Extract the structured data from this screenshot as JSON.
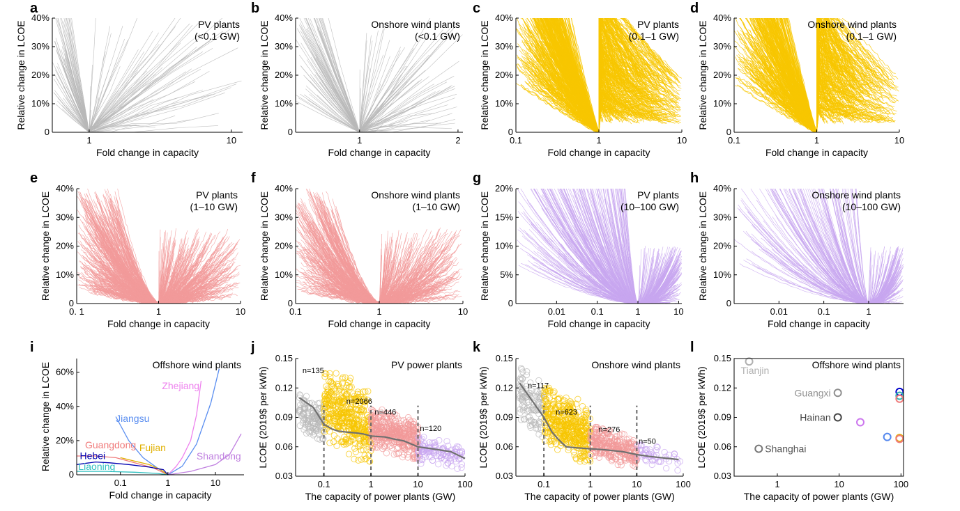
{
  "colors": {
    "gray": "#b8b8b8",
    "yellow": "#f7c600",
    "pink": "#f29a9a",
    "purple": "#c8a6f0",
    "trend": "#707070",
    "dash": "#666666"
  },
  "chart_data": [
    {
      "id": "a",
      "type": "line",
      "panel": "a",
      "title": [
        "PV plants",
        "(<0.1 GW)"
      ],
      "xlabel": "Fold change in capacity",
      "ylabel": "Relative change in LCOE",
      "xscale": "log",
      "xlim": [
        0.55,
        12
      ],
      "ylim": [
        0,
        0.4
      ],
      "xticks": [
        1,
        10
      ],
      "xtick_labels": [
        "1",
        "10"
      ],
      "yticks": [
        0,
        0.1,
        0.2,
        0.3,
        0.4
      ],
      "ytick_labels": [
        "0",
        "10%",
        "20%",
        "30%",
        "40%"
      ],
      "color": "gray",
      "pattern": "sparse",
      "series_count": 70
    },
    {
      "id": "b",
      "type": "line",
      "panel": "b",
      "title": [
        "Onshore wind plants",
        "(<0.1 GW)"
      ],
      "xlabel": "Fold change in capacity",
      "ylabel": "Relative change in LCOE",
      "xscale": "linear",
      "xlim": [
        0.35,
        2.05
      ],
      "ylim": [
        0,
        0.4
      ],
      "xticks": [
        1,
        2
      ],
      "xtick_labels": [
        "1",
        "2"
      ],
      "yticks": [
        0,
        0.1,
        0.2,
        0.3,
        0.4
      ],
      "ytick_labels": [
        "0",
        "10%",
        "20%",
        "30%",
        "40%"
      ],
      "color": "gray",
      "pattern": "sparse",
      "series_count": 70
    },
    {
      "id": "c",
      "type": "line",
      "panel": "c",
      "title": [
        "PV plants",
        "(0.1–1 GW)"
      ],
      "xlabel": "Fold change in capacity",
      "ylabel": "Relative change in LCOE",
      "xscale": "log",
      "xlim": [
        0.1,
        10
      ],
      "ylim": [
        0,
        0.4
      ],
      "xticks": [
        0.1,
        1,
        10
      ],
      "xtick_labels": [
        "0.1",
        "1",
        "10"
      ],
      "yticks": [
        0,
        0.1,
        0.2,
        0.3,
        0.4
      ],
      "ytick_labels": [
        "0",
        "10%",
        "20%",
        "30%",
        "40%"
      ],
      "color": "yellow",
      "pattern": "dense",
      "series_count": 380
    },
    {
      "id": "d",
      "type": "line",
      "panel": "d",
      "title": [
        "Onshore wind plants",
        "(0.1–1 GW)"
      ],
      "xlabel": "Fold change in capacity",
      "ylabel": "Relative change in LCOE",
      "xscale": "log",
      "xlim": [
        0.1,
        10
      ],
      "ylim": [
        0,
        0.4
      ],
      "xticks": [
        0.1,
        1,
        10
      ],
      "xtick_labels": [
        "0.1",
        "1",
        "10"
      ],
      "yticks": [
        0,
        0.1,
        0.2,
        0.3,
        0.4
      ],
      "ytick_labels": [
        "0",
        "10%",
        "20%",
        "30%",
        "40%"
      ],
      "color": "yellow",
      "pattern": "dense",
      "series_count": 300
    },
    {
      "id": "e",
      "type": "line",
      "panel": "e",
      "title": [
        "PV plants",
        "(1–10 GW)"
      ],
      "xlabel": "Fold change in capacity",
      "ylabel": "Relative change in LCOE",
      "xscale": "log",
      "xlim": [
        0.1,
        10
      ],
      "ylim": [
        0,
        0.4
      ],
      "xticks": [
        0.1,
        1,
        10
      ],
      "xtick_labels": [
        "0. 1",
        "1",
        "10"
      ],
      "yticks": [
        0,
        0.1,
        0.2,
        0.3,
        0.4
      ],
      "ytick_labels": [
        "0",
        "10%",
        "20%",
        "30%",
        "40%"
      ],
      "color": "pink",
      "pattern": "fan",
      "series_count": 320
    },
    {
      "id": "f",
      "type": "line",
      "panel": "f",
      "title": [
        "Onshore wind plants",
        "(1–10 GW)"
      ],
      "xlabel": "Fold change in capacity",
      "ylabel": "Relative change in LCOE",
      "xscale": "log",
      "xlim": [
        0.1,
        10
      ],
      "ylim": [
        0,
        0.4
      ],
      "xticks": [
        0.1,
        1,
        10
      ],
      "xtick_labels": [
        "0.1",
        "1",
        "10"
      ],
      "yticks": [
        0,
        0.1,
        0.2,
        0.3,
        0.4
      ],
      "ytick_labels": [
        "0",
        "10%",
        "20%",
        "30%",
        "40%"
      ],
      "color": "pink",
      "pattern": "fan",
      "series_count": 280
    },
    {
      "id": "g",
      "type": "line",
      "panel": "g",
      "title": [
        "PV plants",
        "(10–100 GW)"
      ],
      "xlabel": "Fold change in capacity",
      "ylabel": "Relative change in LCOE",
      "xscale": "log",
      "xlim": [
        0.001,
        12
      ],
      "ylim": [
        0,
        0.2
      ],
      "xticks": [
        0.01,
        0.1,
        1,
        10
      ],
      "xtick_labels": [
        "0.01",
        "0.1",
        "1",
        "10"
      ],
      "yticks": [
        0,
        0.05,
        0.1,
        0.15,
        0.2
      ],
      "ytick_labels": [
        "0",
        "5%",
        "10%",
        "15%",
        "20%"
      ],
      "color": "purple",
      "pattern": "right",
      "series_count": 260
    },
    {
      "id": "h",
      "type": "line",
      "panel": "h",
      "title": [
        "Onshore wind plants",
        "(10–100 GW)"
      ],
      "xlabel": "Fold change in capacity",
      "ylabel": "Relative change in LCOE",
      "xscale": "log",
      "xlim": [
        0.001,
        6
      ],
      "ylim": [
        0,
        0.4
      ],
      "xticks": [
        0.01,
        0.1,
        1
      ],
      "xtick_labels": [
        "0.01",
        "0.1",
        "1"
      ],
      "yticks": [
        0,
        0.1,
        0.2,
        0.3,
        0.4
      ],
      "ytick_labels": [
        "0",
        "10%",
        "20%",
        "30%",
        "40%"
      ],
      "color": "purple",
      "pattern": "right",
      "series_count": 160
    },
    {
      "id": "i",
      "type": "line",
      "panel": "i",
      "title": [
        "Offshore wind plants"
      ],
      "xlabel": "Fold change in capacity",
      "ylabel": "Relative change in LCOE",
      "xscale": "log",
      "xlim": [
        0.012,
        40
      ],
      "ylim": [
        0,
        0.68
      ],
      "xticks": [
        0.1,
        1,
        10
      ],
      "xtick_labels": [
        "0.1",
        "1",
        "10"
      ],
      "yticks": [
        0,
        0.2,
        0.4,
        0.6
      ],
      "ytick_labels": [
        "0",
        "20%",
        "40%",
        "60%"
      ],
      "series": [
        {
          "name": "Zhejiang",
          "color": "#ee82ee",
          "x": [
            1,
            1.5,
            2,
            3,
            4,
            5
          ],
          "y": [
            0,
            0.05,
            0.1,
            0.2,
            0.35,
            0.55
          ],
          "label_x": 0.75,
          "label_y": 0.5
        },
        {
          "name": "Jiangsu",
          "color": "#5a8ef0",
          "x": [
            0.08,
            0.15,
            0.3,
            0.6,
            1,
            2,
            4,
            8,
            12
          ],
          "y": [
            0.34,
            0.2,
            0.1,
            0.04,
            0,
            0.05,
            0.18,
            0.42,
            0.62
          ],
          "label_x": 0.08,
          "label_y": 0.31
        },
        {
          "name": "Guangdong",
          "color": "#f07a7a",
          "x": [
            0.012,
            0.03,
            0.08,
            0.2,
            0.5,
            1
          ],
          "y": [
            0.11,
            0.11,
            0.1,
            0.07,
            0.04,
            0
          ],
          "label_x": 0.018,
          "label_y": 0.155
        },
        {
          "name": "Fujian",
          "color": "#e0b000",
          "x": [
            0.1,
            0.2,
            0.4,
            0.7,
            1
          ],
          "y": [
            0.1,
            0.08,
            0.06,
            0.03,
            0
          ],
          "label_x": 0.25,
          "label_y": 0.138
        },
        {
          "name": "Shandong",
          "color": "#c080e0",
          "x": [
            1,
            3,
            10,
            20,
            35
          ],
          "y": [
            0,
            0.02,
            0.06,
            0.12,
            0.24
          ],
          "label_x": 4,
          "label_y": 0.09
        },
        {
          "name": "Hebei",
          "color": "#0000b0",
          "x": [
            0.012,
            0.03,
            0.06,
            0.15,
            0.4,
            0.8,
            1
          ],
          "y": [
            0.06,
            0.075,
            0.07,
            0.06,
            0.045,
            0.03,
            0
          ],
          "label_x": 0.014,
          "label_y": 0.092
        },
        {
          "name": "Liaoning",
          "color": "#30c0c0",
          "x": [
            0.012,
            0.05,
            0.2,
            0.6,
            1
          ],
          "y": [
            0.02,
            0.02,
            0.015,
            0.008,
            0
          ],
          "label_x": 0.013,
          "label_y": 0.028
        }
      ]
    },
    {
      "id": "j",
      "type": "scatter",
      "panel": "j",
      "title": [
        "PV power plants"
      ],
      "xlabel": "The capacity of power plants (GW)",
      "ylabel": "LCOE (2019$ per kWh)",
      "xscale": "log",
      "xlim": [
        0.025,
        100
      ],
      "ylim": [
        0.03,
        0.15
      ],
      "xticks": [
        0.1,
        1,
        10,
        100
      ],
      "xtick_labels": [
        "0.1",
        "1",
        "10",
        "100"
      ],
      "yticks": [
        0.03,
        0.06,
        0.09,
        0.12,
        0.15
      ],
      "ytick_labels": [
        "0.03",
        "0.06",
        "0.09",
        "0.12",
        "0.15"
      ],
      "groups": [
        {
          "n_label": "n=135",
          "n": 135,
          "color": "gray",
          "xrange": [
            0.03,
            0.1
          ],
          "yrange": [
            0.065,
            0.115
          ],
          "label_x": 0.035,
          "label_y": 0.135
        },
        {
          "n_label": "n=2066",
          "n": 2066,
          "color": "yellow",
          "xrange": [
            0.1,
            1
          ],
          "yrange": [
            0.045,
            0.14
          ],
          "label_x": 0.3,
          "label_y": 0.104
        },
        {
          "n_label": "n=446",
          "n": 446,
          "color": "pink",
          "xrange": [
            1,
            10
          ],
          "yrange": [
            0.048,
            0.098
          ],
          "label_x": 1.2,
          "label_y": 0.093
        },
        {
          "n_label": "n=120",
          "n": 120,
          "color": "purple",
          "xrange": [
            10,
            100
          ],
          "yrange": [
            0.035,
            0.07
          ],
          "label_x": 11,
          "label_y": 0.076
        }
      ],
      "dividers": [
        0.1,
        1,
        10
      ],
      "trend": {
        "x": [
          0.03,
          0.06,
          0.1,
          0.15,
          0.2,
          0.3,
          0.5,
          0.7,
          1,
          2,
          3,
          5,
          10,
          20,
          50,
          100
        ],
        "y": [
          0.11,
          0.1,
          0.083,
          0.078,
          0.076,
          0.075,
          0.074,
          0.073,
          0.071,
          0.07,
          0.068,
          0.066,
          0.06,
          0.058,
          0.055,
          0.048
        ]
      }
    },
    {
      "id": "k",
      "type": "scatter",
      "panel": "k",
      "title": [
        "Onshore wind plants"
      ],
      "xlabel": "The capacity of power plants (GW)",
      "ylabel": "LCOE (2019$ per kWh)",
      "xscale": "log",
      "xlim": [
        0.025,
        100
      ],
      "ylim": [
        0.03,
        0.15
      ],
      "xticks": [
        0.1,
        1,
        10,
        100
      ],
      "xtick_labels": [
        "0.1",
        "1",
        "10",
        "100"
      ],
      "yticks": [
        0.03,
        0.06,
        0.09,
        0.12,
        0.15
      ],
      "ytick_labels": [
        "0.03",
        "0.06",
        "0.09",
        "0.12",
        "0.15"
      ],
      "groups": [
        {
          "n_label": "n=117",
          "n": 117,
          "color": "gray",
          "xrange": [
            0.03,
            0.1
          ],
          "yrange": [
            0.07,
            0.14
          ],
          "label_x": 0.045,
          "label_y": 0.12
        },
        {
          "n_label": "n=623",
          "n": 623,
          "color": "yellow",
          "xrange": [
            0.1,
            1
          ],
          "yrange": [
            0.045,
            0.12
          ],
          "label_x": 0.18,
          "label_y": 0.093
        },
        {
          "n_label": "n=276",
          "n": 276,
          "color": "pink",
          "xrange": [
            1,
            10
          ],
          "yrange": [
            0.04,
            0.08
          ],
          "label_x": 1.5,
          "label_y": 0.075
        },
        {
          "n_label": "n=50",
          "n": 50,
          "color": "purple",
          "xrange": [
            10,
            90
          ],
          "yrange": [
            0.035,
            0.065
          ],
          "label_x": 11,
          "label_y": 0.063
        }
      ],
      "dividers": [
        0.1,
        1,
        10
      ],
      "trend": {
        "x": [
          0.03,
          0.06,
          0.1,
          0.15,
          0.2,
          0.3,
          0.5,
          1,
          2,
          5,
          10,
          20,
          50,
          80
        ],
        "y": [
          0.125,
          0.105,
          0.09,
          0.075,
          0.068,
          0.06,
          0.059,
          0.058,
          0.057,
          0.055,
          0.052,
          0.05,
          0.048,
          0.047
        ]
      }
    },
    {
      "id": "l",
      "type": "scatter",
      "panel": "l",
      "title": [
        "Offshore wind plants"
      ],
      "xlabel": "The capacity of power plants (GW)",
      "ylabel": "LCOE (2019$ per kWh)",
      "xscale": "log",
      "xlim": [
        0.2,
        110
      ],
      "ylim": [
        0.03,
        0.15
      ],
      "xticks": [
        1,
        10,
        100
      ],
      "xtick_labels": [
        "1",
        "10",
        "100"
      ],
      "yticks": [
        0.03,
        0.06,
        0.09,
        0.12,
        0.15
      ],
      "ytick_labels": [
        "0.03",
        "0.06",
        "0.09",
        "0.12",
        "0.15"
      ],
      "points": [
        {
          "label": "Tianjin",
          "x": 0.35,
          "y": 0.147,
          "color": "#b0b0b0",
          "label_side": "below",
          "text_color": "#b0b0b0"
        },
        {
          "label": "Guangxi",
          "x": 9.5,
          "y": 0.115,
          "color": "#909090",
          "label_side": "left",
          "text_color": "#909090"
        },
        {
          "label": "Hainan",
          "x": 9.5,
          "y": 0.09,
          "color": "#444444",
          "label_side": "left",
          "text_color": "#444444"
        },
        {
          "label": "Shanghai",
          "x": 0.5,
          "y": 0.058,
          "color": "#777777",
          "label_side": "right",
          "text_color": "#555555"
        },
        {
          "label": "",
          "x": 22,
          "y": 0.085,
          "color": "#cc77ee"
        },
        {
          "label": "",
          "x": 60,
          "y": 0.07,
          "color": "#5588ee"
        },
        {
          "label": "",
          "x": 95,
          "y": 0.116,
          "color": "#0000cc"
        },
        {
          "label": "",
          "x": 95,
          "y": 0.112,
          "color": "#30b0b0"
        },
        {
          "label": "",
          "x": 95,
          "y": 0.109,
          "color": "#f07a7a"
        },
        {
          "label": "",
          "x": 95,
          "y": 0.069,
          "color": "#e0b000"
        },
        {
          "label": "",
          "x": 95,
          "y": 0.068,
          "color": "#f07a7a"
        }
      ]
    }
  ]
}
